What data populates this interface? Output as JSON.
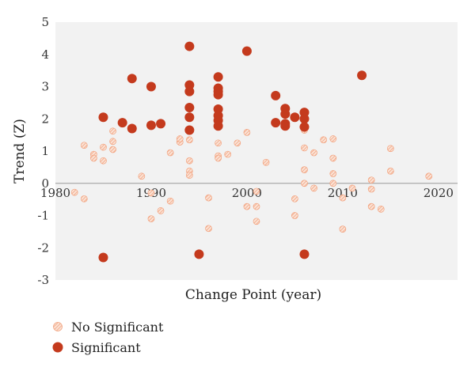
{
  "chart_data": {
    "type": "scatter",
    "xlabel": "Change Point (year)",
    "ylabel": "Trend (Z)",
    "xlim": [
      1980,
      2022
    ],
    "ylim": [
      -3,
      5
    ],
    "xticks": [
      1980,
      1990,
      2000,
      2010,
      2020
    ],
    "yticks": [
      -3,
      -2,
      -1,
      0,
      1,
      2,
      3,
      4,
      5
    ],
    "grid": false,
    "legend_position": "bottom-left",
    "series": [
      {
        "name": "No Significant",
        "color": "#f2a27e",
        "marker": "hatched-circle",
        "points": [
          [
            1982,
            -0.28
          ],
          [
            1983,
            1.18
          ],
          [
            1983,
            -0.48
          ],
          [
            1984,
            0.9
          ],
          [
            1984,
            0.78
          ],
          [
            1985,
            1.12
          ],
          [
            1985,
            0.7
          ],
          [
            1986,
            1.62
          ],
          [
            1986,
            1.3
          ],
          [
            1986,
            1.05
          ],
          [
            1989,
            0.22
          ],
          [
            1990,
            -0.3
          ],
          [
            1990,
            -1.1
          ],
          [
            1991,
            -0.85
          ],
          [
            1992,
            0.95
          ],
          [
            1992,
            -0.55
          ],
          [
            1993,
            1.28
          ],
          [
            1993,
            1.38
          ],
          [
            1994,
            1.35
          ],
          [
            1994,
            0.7
          ],
          [
            1994,
            0.38
          ],
          [
            1994,
            0.25
          ],
          [
            1996,
            -0.45
          ],
          [
            1996,
            -1.4
          ],
          [
            1997,
            0.85
          ],
          [
            1997,
            1.25
          ],
          [
            1997,
            0.78
          ],
          [
            1998,
            0.9
          ],
          [
            1999,
            1.25
          ],
          [
            2000,
            1.58
          ],
          [
            2000,
            -0.72
          ],
          [
            2001,
            -0.25
          ],
          [
            2001,
            -0.72
          ],
          [
            2001,
            -1.18
          ],
          [
            2002,
            0.65
          ],
          [
            2005,
            -0.48
          ],
          [
            2005,
            -1.0
          ],
          [
            2006,
            1.65
          ],
          [
            2006,
            1.1
          ],
          [
            2006,
            0.42
          ],
          [
            2006,
            0.0
          ],
          [
            2007,
            0.95
          ],
          [
            2007,
            -0.15
          ],
          [
            2008,
            1.35
          ],
          [
            2009,
            1.38
          ],
          [
            2009,
            0.78
          ],
          [
            2009,
            0.3
          ],
          [
            2009,
            0.0
          ],
          [
            2010,
            -0.45
          ],
          [
            2010,
            -1.42
          ],
          [
            2011,
            -0.15
          ],
          [
            2013,
            0.1
          ],
          [
            2013,
            -0.18
          ],
          [
            2013,
            -0.72
          ],
          [
            2014,
            -0.8
          ],
          [
            2015,
            1.08
          ],
          [
            2015,
            0.38
          ],
          [
            2019,
            0.22
          ]
        ]
      },
      {
        "name": "Significant",
        "color": "#c43a1d",
        "marker": "filled-circle",
        "points": [
          [
            1985,
            2.05
          ],
          [
            1985,
            -2.3
          ],
          [
            1987,
            1.88
          ],
          [
            1988,
            3.25
          ],
          [
            1988,
            1.7
          ],
          [
            1990,
            3.0
          ],
          [
            1990,
            1.8
          ],
          [
            1991,
            1.85
          ],
          [
            1994,
            4.25
          ],
          [
            1994,
            3.05
          ],
          [
            1994,
            2.85
          ],
          [
            1994,
            2.35
          ],
          [
            1994,
            2.05
          ],
          [
            1994,
            1.65
          ],
          [
            1995,
            -2.2
          ],
          [
            1997,
            3.3
          ],
          [
            1997,
            2.95
          ],
          [
            1997,
            2.85
          ],
          [
            1997,
            2.75
          ],
          [
            1997,
            2.3
          ],
          [
            1997,
            2.1
          ],
          [
            1997,
            1.95
          ],
          [
            1997,
            1.78
          ],
          [
            2000,
            4.1
          ],
          [
            2003,
            2.72
          ],
          [
            2003,
            1.88
          ],
          [
            2004,
            2.32
          ],
          [
            2004,
            2.15
          ],
          [
            2004,
            1.85
          ],
          [
            2004,
            1.78
          ],
          [
            2005,
            2.05
          ],
          [
            2006,
            2.2
          ],
          [
            2006,
            2.0
          ],
          [
            2006,
            1.75
          ],
          [
            2006,
            -2.2
          ],
          [
            2012,
            3.35
          ]
        ]
      }
    ]
  },
  "legend": {
    "items": [
      {
        "label": "No Significant",
        "color": "#f2a27e"
      },
      {
        "label": "Significant",
        "color": "#c43a1d"
      }
    ]
  }
}
